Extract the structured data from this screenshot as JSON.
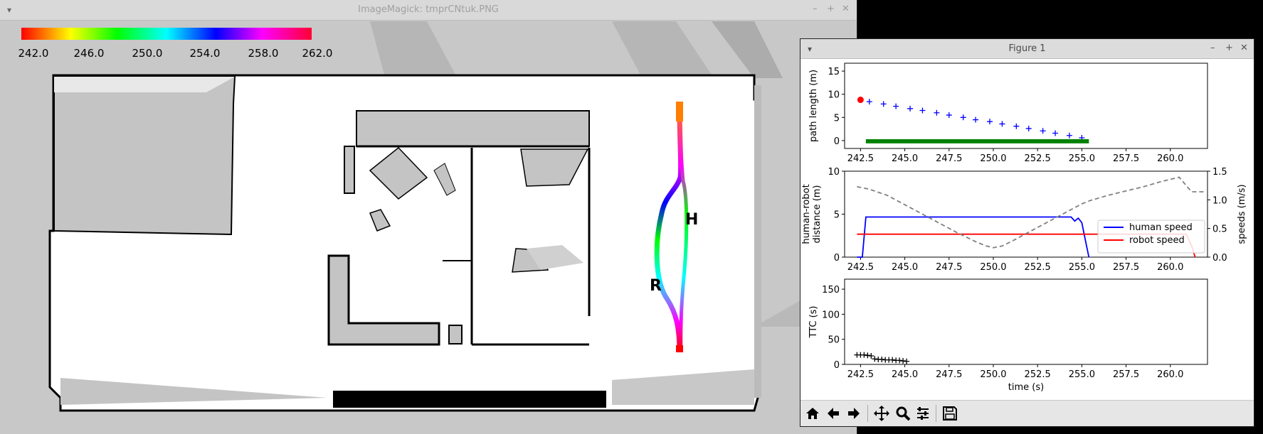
{
  "imagemagick": {
    "title": "ImageMagick: tmprCNtuk.PNG",
    "colorbar_ticks": [
      "242.0",
      "246.0",
      "250.0",
      "254.0",
      "258.0",
      "262.0"
    ],
    "map_label_human": "H",
    "map_label_robot": "R"
  },
  "figure": {
    "title": "Figure 1",
    "toolbar": {
      "home": "home-icon",
      "back": "back-arrow-icon",
      "forward": "forward-arrow-icon",
      "pan": "pan-icon",
      "zoom": "zoom-icon",
      "configure": "configure-subplots-icon",
      "save": "save-icon"
    }
  },
  "chart_data": [
    {
      "type": "scatter",
      "ylabel": "path length (m)",
      "xlabel": "",
      "xlim": [
        241.6,
        262.1
      ],
      "ylim": [
        -1.7,
        16.7
      ],
      "x_ticks": [
        "242.5",
        "245.0",
        "247.5",
        "250.0",
        "252.5",
        "255.0",
        "257.5",
        "260.0"
      ],
      "y_ticks": [
        "0",
        "5",
        "10",
        "15"
      ],
      "series": [
        {
          "marker": "plus",
          "color": "#0000ff",
          "x": [
            243.0,
            243.8,
            244.5,
            245.3,
            246.0,
            246.8,
            247.5,
            248.3,
            249.0,
            249.8,
            250.5,
            251.3,
            252.0,
            252.8,
            253.5,
            254.3,
            255.0
          ],
          "y": [
            8.4,
            7.9,
            7.4,
            6.9,
            6.5,
            6.0,
            5.5,
            5.0,
            4.5,
            4.1,
            3.6,
            3.1,
            2.6,
            2.1,
            1.6,
            1.1,
            0.6
          ]
        },
        {
          "marker": "circle",
          "color": "#ff0000",
          "x": [
            242.5
          ],
          "y": [
            8.8
          ]
        },
        {
          "marker": "band",
          "color": "#008000",
          "x": [
            242.8,
            255.4
          ],
          "y": [
            -0.6,
            0.3
          ]
        }
      ]
    },
    {
      "type": "line",
      "ylabel": "human-robot\ndistance (m)",
      "ylabel_right": "speeds (m/s)",
      "xlim": [
        241.6,
        262.1
      ],
      "ylim": [
        0,
        10
      ],
      "ylim_right": [
        0,
        1.5
      ],
      "x_ticks": [
        "242.5",
        "245.0",
        "247.5",
        "250.0",
        "252.5",
        "255.0",
        "257.5",
        "260.0"
      ],
      "y_ticks": [
        "0",
        "5",
        "10"
      ],
      "y_ticks_right": [
        "0.0",
        "0.5",
        "1.0",
        "1.5"
      ],
      "legend_position": "lower-right",
      "series": [
        {
          "name": "human speed",
          "axis": "right",
          "color": "#0000ff",
          "style": "solid",
          "x": [
            242.3,
            242.6,
            242.8,
            254.4,
            254.6,
            254.8,
            255.0,
            255.2,
            255.4
          ],
          "y": [
            0.0,
            0.0,
            0.7,
            0.7,
            0.63,
            0.68,
            0.6,
            0.3,
            0.0
          ]
        },
        {
          "name": "robot speed",
          "axis": "right",
          "color": "#ff0000",
          "style": "solid",
          "x": [
            242.3,
            260.9,
            261.2,
            261.4
          ],
          "y": [
            0.4,
            0.4,
            0.2,
            0.0
          ]
        },
        {
          "name": "",
          "axis": "left",
          "color": "#808080",
          "style": "dashed",
          "x": [
            242.3,
            243.0,
            244.0,
            245.0,
            246.0,
            247.0,
            248.0,
            249.0,
            249.6,
            250.0,
            250.5,
            251.0,
            252.0,
            253.0,
            254.0,
            255.0,
            255.5,
            256.5,
            257.5,
            258.5,
            259.5,
            260.5,
            261.2,
            262.0
          ],
          "y": [
            8.2,
            7.9,
            7.2,
            6.1,
            5.0,
            3.9,
            2.8,
            1.8,
            1.3,
            1.1,
            1.3,
            1.8,
            2.9,
            4.0,
            5.1,
            6.2,
            6.6,
            7.2,
            7.7,
            8.2,
            8.8,
            9.3,
            7.6,
            7.6
          ]
        }
      ]
    },
    {
      "type": "scatter",
      "ylabel": "TTC (s)",
      "xlabel": "time (s)",
      "xlim": [
        241.6,
        262.1
      ],
      "ylim": [
        0,
        170
      ],
      "x_ticks": [
        "242.5",
        "245.0",
        "247.5",
        "250.0",
        "252.5",
        "255.0",
        "257.5",
        "260.0"
      ],
      "y_ticks": [
        "0",
        "50",
        "100",
        "150"
      ],
      "series": [
        {
          "marker": "plus",
          "color": "#000000",
          "x": [
            242.3,
            242.5,
            242.7,
            242.9,
            243.1,
            243.3,
            243.5,
            243.7,
            243.9,
            244.1,
            244.3,
            244.5,
            244.7,
            244.9,
            245.1
          ],
          "y": [
            19,
            19,
            19,
            18,
            17,
            11,
            10,
            10,
            9,
            9,
            9,
            8,
            8,
            7,
            6
          ]
        }
      ]
    }
  ]
}
